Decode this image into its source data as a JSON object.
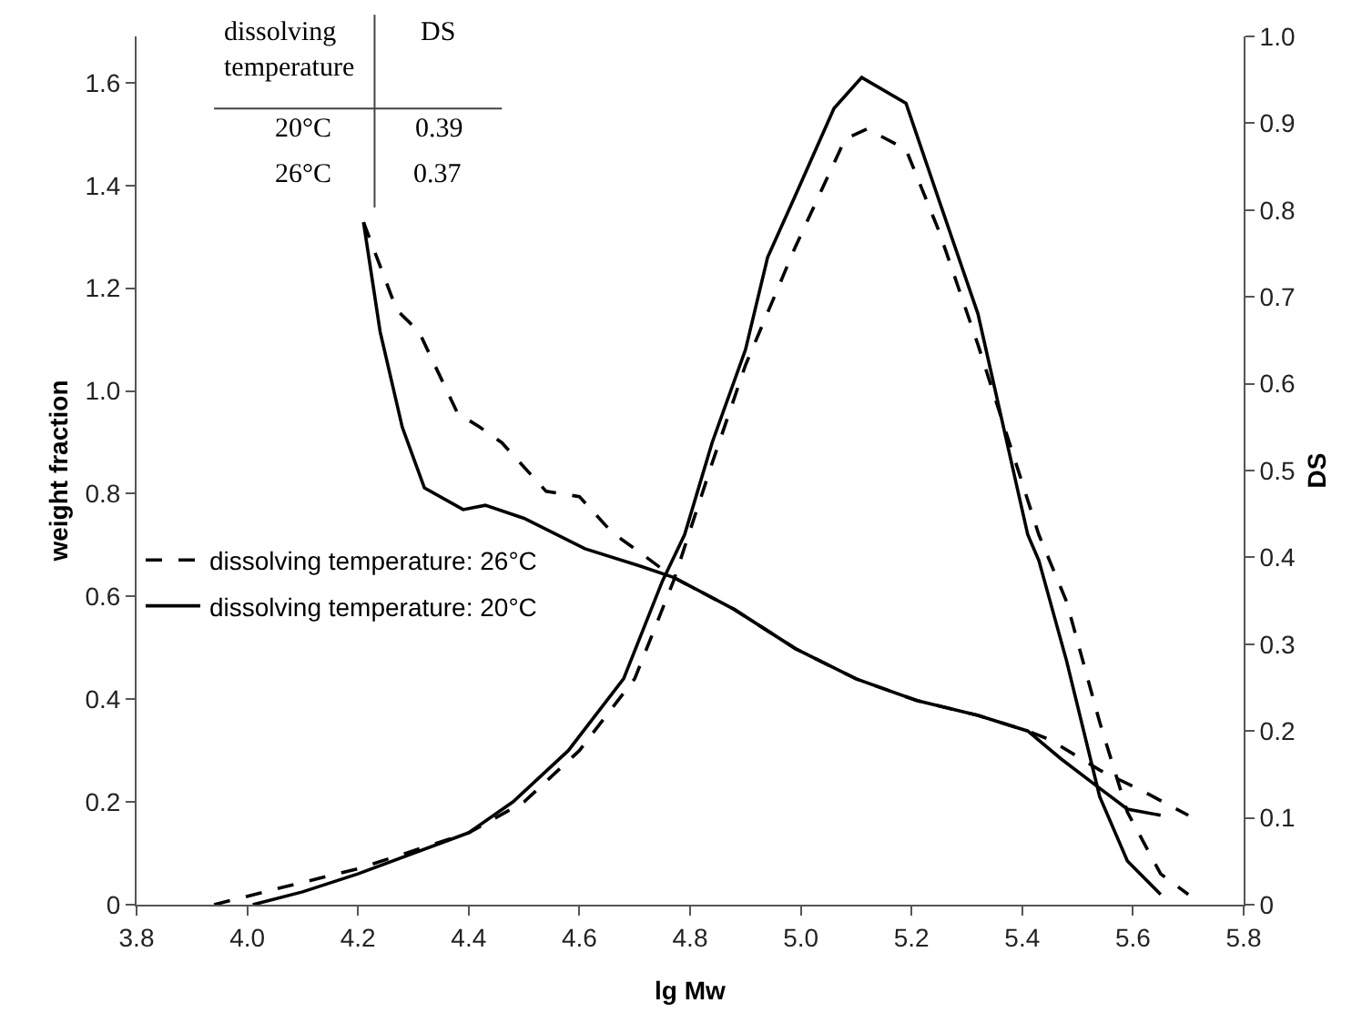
{
  "chart_data": {
    "type": "line",
    "xlabel": "lg Mw",
    "ylabel": "weight fraction",
    "y2label": "DS",
    "xlim": [
      3.8,
      5.8
    ],
    "xticks": [
      3.8,
      {
        "value": 4,
        "label": "4.0"
      },
      4.2,
      4.4,
      4.6,
      4.8,
      {
        "value": 5,
        "label": "5.0"
      },
      5.2,
      5.4,
      5.6,
      5.8
    ],
    "ylim": [
      0,
      1.69
    ],
    "yticks": [
      0,
      0.2,
      0.4,
      0.6,
      0.8,
      {
        "value": 1,
        "label": "1.0"
      },
      1.2,
      1.4,
      1.6
    ],
    "y2lim": [
      0,
      1
    ],
    "y2ticks": [
      0,
      0.1,
      0.2,
      0.3,
      0.4,
      0.5,
      0.6,
      0.7,
      0.8,
      0.9,
      {
        "value": 1,
        "label": "1.0"
      }
    ],
    "grid": false,
    "legend": "left",
    "marker": "none",
    "annotations": [
      "dissolving\ntemperature",
      "DS",
      "20°C",
      "0.39",
      "26°C",
      "0.37"
    ],
    "series": [
      {
        "name": "dissolving temperature: 26°C",
        "color": "#000000",
        "line_style": "dashed",
        "x": [
          3.94,
          4.05,
          4.2,
          4.4,
          4.5,
          4.6,
          4.7,
          4.77,
          4.84,
          4.9,
          4.99,
          5.08,
          5.12,
          5.19,
          5.25,
          5.32,
          5.43,
          5.48,
          5.54,
          5.59,
          5.65,
          5.7
        ],
        "values": [
          0,
          0.03,
          0.07,
          0.14,
          0.2,
          0.3,
          0.44,
          0.63,
          0.86,
          1.05,
          1.28,
          1.49,
          1.51,
          1.47,
          1.31,
          1.09,
          0.72,
          0.59,
          0.355,
          0.18,
          0.06,
          0.02
        ]
      },
      {
        "name": "dissolving temperature: 20°C",
        "color": "#000000",
        "line_style": "solid",
        "x": [
          4.01,
          4.1,
          4.2,
          4.4,
          4.48,
          4.58,
          4.68,
          4.75,
          4.79,
          4.84,
          4.9,
          4.94,
          4.99,
          5.06,
          5.11,
          5.19,
          5.25,
          5.32,
          5.41,
          5.43,
          5.48,
          5.54,
          5.59,
          5.65
        ],
        "values": [
          0,
          0.025,
          0.06,
          0.14,
          0.2,
          0.3,
          0.44,
          0.63,
          0.72,
          0.9,
          1.08,
          1.26,
          1.38,
          1.55,
          1.61,
          1.56,
          1.37,
          1.15,
          0.72,
          0.67,
          0.475,
          0.21,
          0.085,
          0.02
        ]
      },
      {
        "color": "#000000",
        "line_style": "dashed",
        "axis": "y2",
        "x": [
          4.21,
          4.27,
          4.31,
          4.38,
          4.42,
          4.46,
          4.54,
          4.6,
          4.66,
          4.7,
          4.77,
          4.88,
          4.99,
          5.1,
          5.21,
          5.32,
          5.41,
          5.45,
          5.54,
          5.62,
          5.7
        ],
        "values": [
          0.786,
          0.685,
          0.66,
          0.566,
          0.55,
          0.532,
          0.476,
          0.47,
          0.428,
          0.41,
          0.377,
          0.34,
          0.295,
          0.26,
          0.235,
          0.218,
          0.2,
          0.19,
          0.155,
          0.13,
          0.103
        ]
      },
      {
        "color": "#000000",
        "line_style": "solid",
        "axis": "y2",
        "x": [
          4.21,
          4.24,
          4.28,
          4.32,
          4.39,
          4.43,
          4.5,
          4.61,
          4.71,
          4.77,
          4.88,
          4.99,
          5.1,
          5.21,
          5.32,
          5.41,
          5.47,
          5.54,
          5.59,
          5.65
        ],
        "values": [
          0.786,
          0.66,
          0.55,
          0.48,
          0.455,
          0.46,
          0.445,
          0.41,
          0.39,
          0.377,
          0.34,
          0.295,
          0.26,
          0.235,
          0.218,
          0.2,
          0.168,
          0.134,
          0.11,
          0.103
        ]
      }
    ]
  }
}
